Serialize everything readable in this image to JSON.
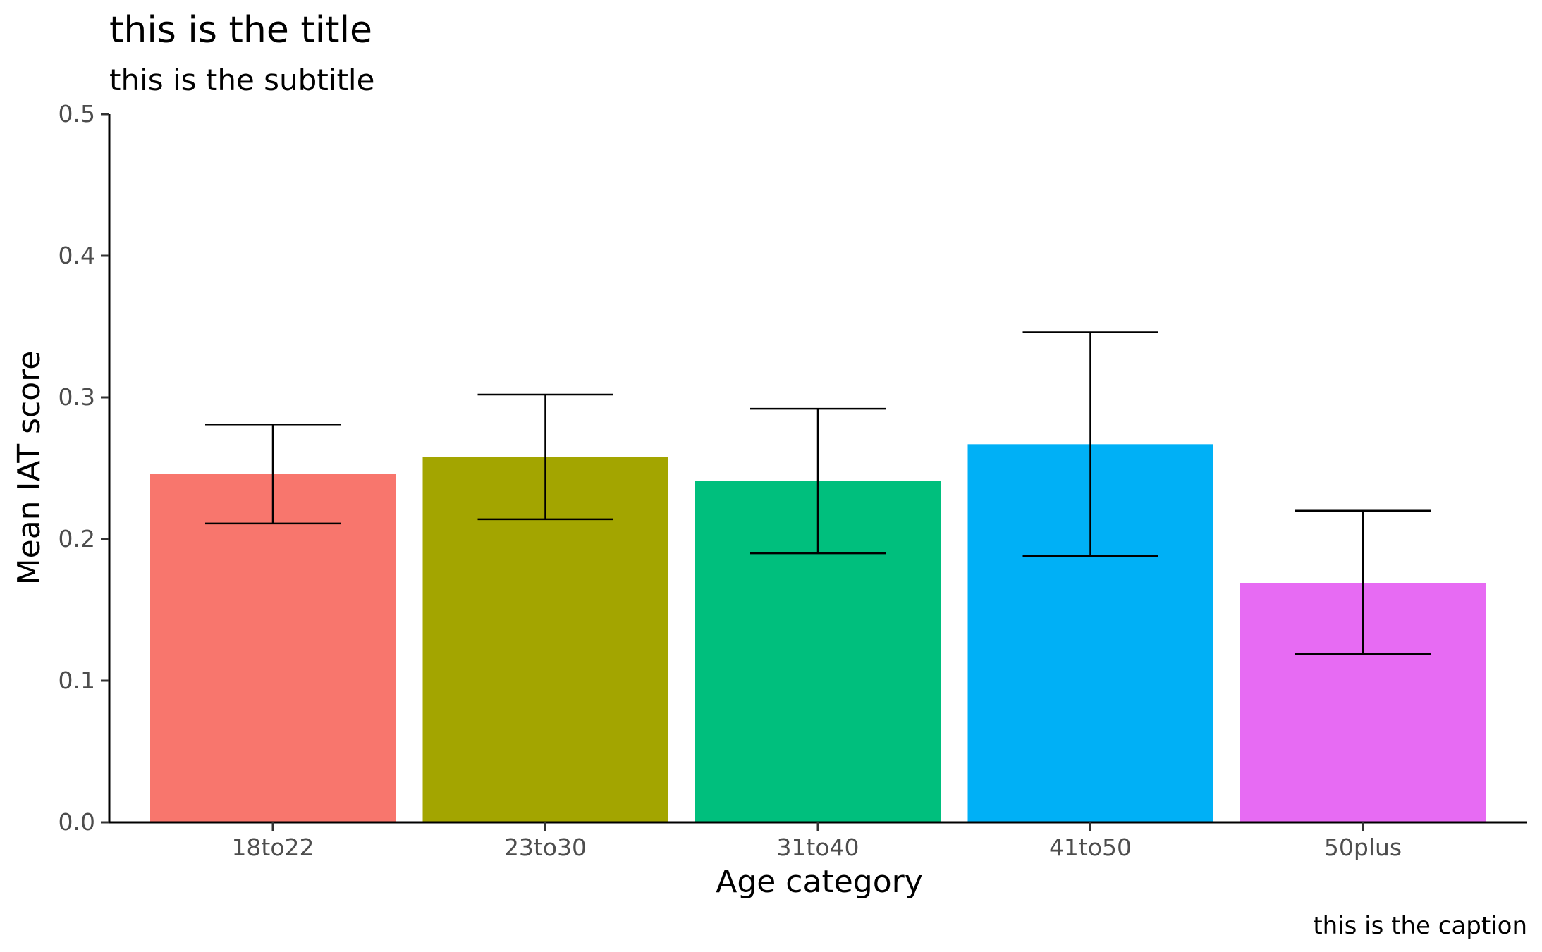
{
  "chart_data": {
    "type": "bar",
    "title": "this is the title",
    "subtitle": "this is the subtitle",
    "caption": "this is the caption",
    "xlabel": "Age category",
    "ylabel": "Mean IAT score",
    "ylim": [
      0,
      0.5
    ],
    "y_ticks": [
      0.0,
      0.1,
      0.2,
      0.3,
      0.4,
      0.5
    ],
    "y_tick_labels": [
      "0.0",
      "0.1",
      "0.2",
      "0.3",
      "0.4",
      "0.5"
    ],
    "categories": [
      "18to22",
      "23to30",
      "31to40",
      "41to50",
      "50plus"
    ],
    "values": [
      0.246,
      0.258,
      0.241,
      0.267,
      0.169
    ],
    "error_low": [
      0.211,
      0.214,
      0.19,
      0.188,
      0.119
    ],
    "error_high": [
      0.281,
      0.302,
      0.292,
      0.346,
      0.22
    ],
    "colors": [
      "#F8766D",
      "#A3A500",
      "#00BF7D",
      "#00B0F6",
      "#E76BF3"
    ],
    "grid": false,
    "legend": "none"
  }
}
